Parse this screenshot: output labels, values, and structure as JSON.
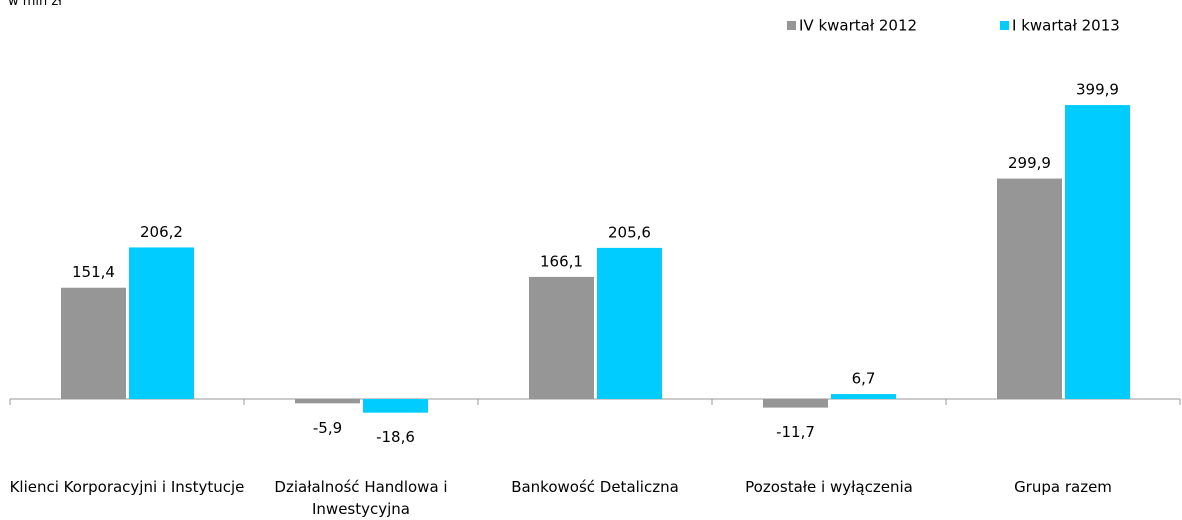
{
  "chart_data": {
    "type": "bar",
    "unit_label": "w mln zł",
    "categories": [
      "Klienci Korporacyjni i Instytucje",
      "Działalność Handlowa i Inwestycyjna",
      "Bankowość Detaliczna",
      "Pozostałe i wyłączenia",
      "Grupa razem"
    ],
    "series": [
      {
        "name": "IV kwartał 2012",
        "color": "#969696",
        "values": [
          151.4,
          -5.9,
          166.1,
          -11.7,
          299.9
        ],
        "value_labels": [
          "151,4",
          "-5,9",
          "166,1",
          "-11,7",
          "299,9"
        ]
      },
      {
        "name": "I kwartał 2013",
        "color": "#00ccff",
        "values": [
          206.2,
          -18.6,
          205.6,
          6.7,
          399.9
        ],
        "value_labels": [
          "206,2",
          "-18,6",
          "205,6",
          "6,7",
          "399,9"
        ]
      }
    ],
    "legend": "top-right"
  }
}
